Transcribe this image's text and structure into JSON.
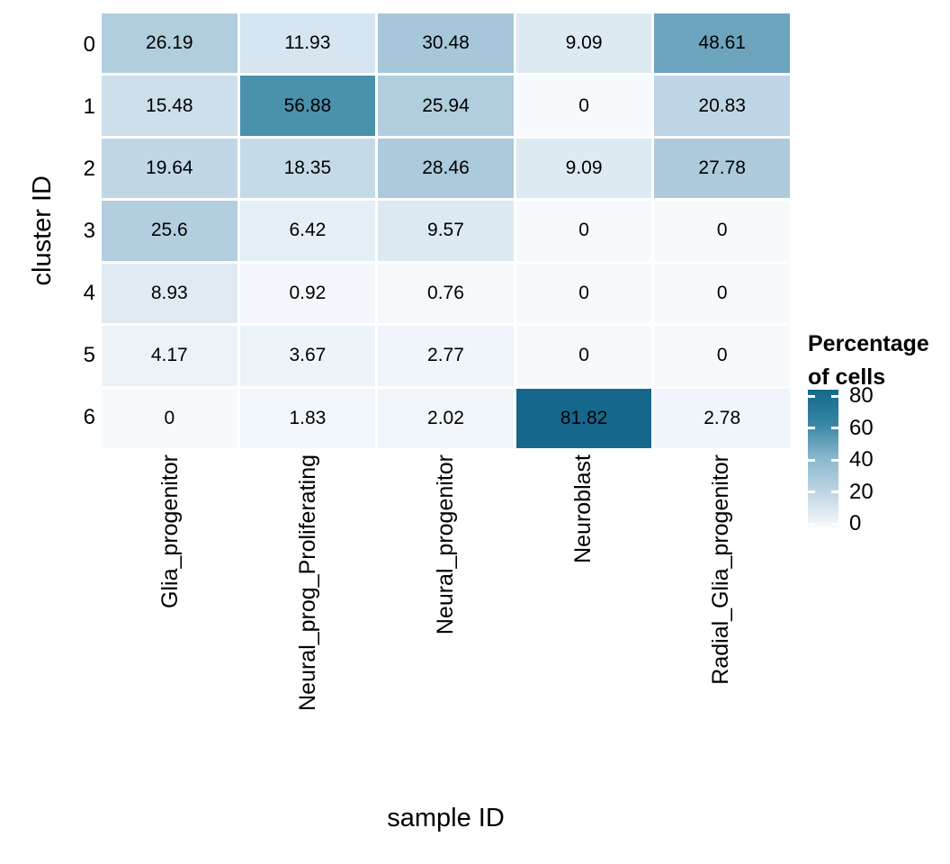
{
  "chart_data": {
    "type": "heatmap",
    "title": "",
    "xlabel": "sample ID",
    "ylabel": "cluster ID",
    "x_categories": [
      "Glia_progenitor",
      "Neural_prog_Proliferating",
      "Neural_progenitor",
      "Neuroblast",
      "Radial_Glia_progenitor"
    ],
    "y_categories": [
      "0",
      "1",
      "2",
      "3",
      "4",
      "5",
      "6"
    ],
    "values": [
      [
        26.19,
        11.93,
        30.48,
        9.09,
        48.61
      ],
      [
        15.48,
        56.88,
        25.94,
        0,
        20.83
      ],
      [
        19.64,
        18.35,
        28.46,
        9.09,
        27.78
      ],
      [
        25.6,
        6.42,
        9.57,
        0,
        0
      ],
      [
        8.93,
        0.92,
        0.76,
        0,
        0
      ],
      [
        4.17,
        3.67,
        2.77,
        0,
        0
      ],
      [
        0,
        1.83,
        2.02,
        81.82,
        2.78
      ]
    ],
    "legend": {
      "title_line1": "Percentage",
      "title_line2": "of cells",
      "ticks": [
        80,
        60,
        40,
        20,
        0
      ],
      "min": 0,
      "max": 81.82,
      "position": "right"
    },
    "colors": {
      "gradient_stops": [
        {
          "t": 0.0,
          "hex": "#f7fafd"
        },
        {
          "t": 0.25,
          "hex": "#bfd6e5"
        },
        {
          "t": 0.5,
          "hex": "#8cb8cc"
        },
        {
          "t": 0.75,
          "hex": "#3786a3"
        },
        {
          "t": 1.0,
          "hex": "#15688c"
        }
      ],
      "cell_text": "#000000",
      "background": "#ffffff",
      "tile_border": "#ffffff"
    },
    "grid": false
  }
}
